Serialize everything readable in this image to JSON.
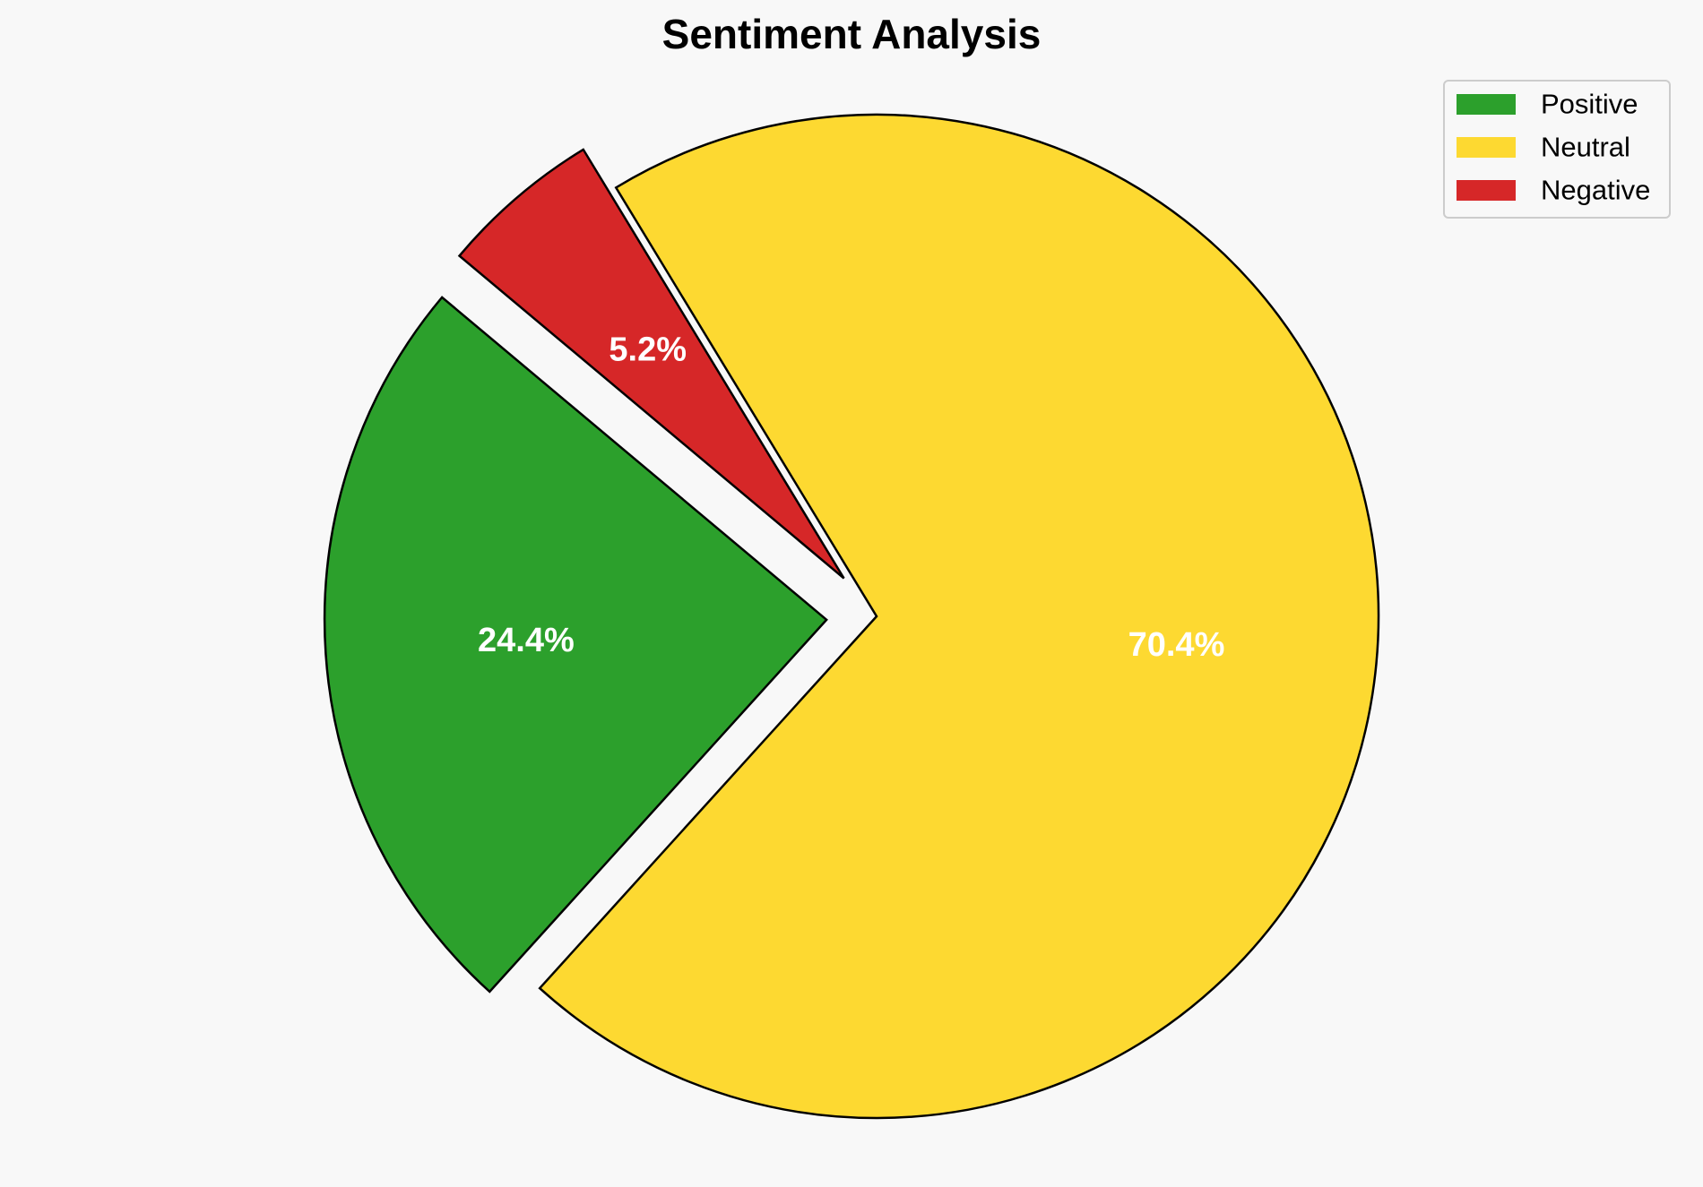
{
  "chart_data": {
    "type": "pie",
    "title": "Sentiment Analysis",
    "legend_position": "top-right",
    "start_angle_degrees": 140,
    "direction": "counterclockwise",
    "slices": [
      {
        "label": "Positive",
        "value": 24.4,
        "display": "24.4%",
        "color": "#2ca02c",
        "exploded": true
      },
      {
        "label": "Neutral",
        "value": 70.4,
        "display": "70.4%",
        "color": "#fdd931",
        "exploded": false
      },
      {
        "label": "Negative",
        "value": 5.2,
        "display": "5.2%",
        "color": "#d62728",
        "exploded": true
      }
    ]
  }
}
